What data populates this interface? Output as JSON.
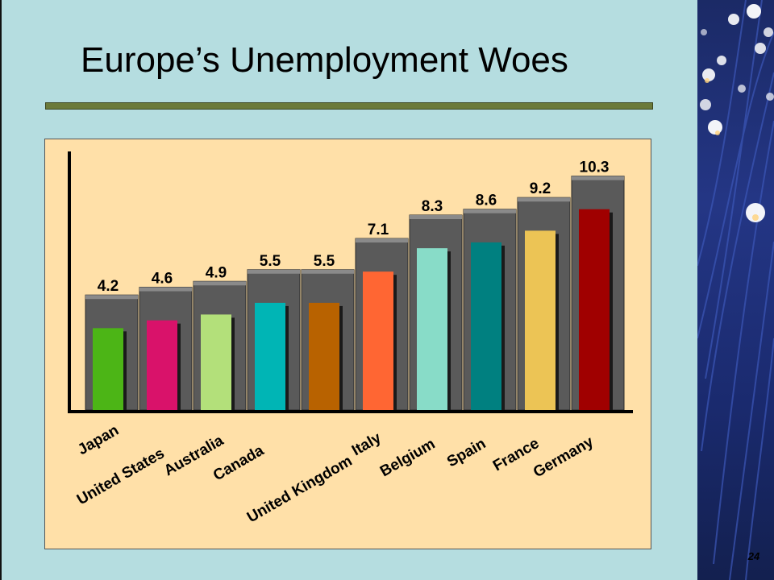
{
  "slide": {
    "title": "Europe’s Unemployment Woes",
    "page_number": "24"
  },
  "colors": {
    "background": "#b5dde0",
    "chart_panel": "#ffe0a8",
    "title_rule": "#6b7a3a",
    "bar_frame": "#5a5a5a"
  },
  "chart_data": {
    "type": "bar",
    "title": "",
    "xlabel": "",
    "ylabel": "",
    "categories": [
      "Japan",
      "United States",
      "Australia",
      "Canada",
      "United Kingdom",
      "Italy",
      "Belgium",
      "Spain",
      "France",
      "Germany"
    ],
    "values": [
      4.2,
      4.6,
      4.9,
      5.5,
      5.5,
      7.1,
      8.3,
      8.6,
      9.2,
      10.3
    ],
    "value_labels": [
      "4.2",
      "4.6",
      "4.9",
      "5.5",
      "5.5",
      "7.1",
      "8.3",
      "8.6",
      "9.2",
      "10.3"
    ],
    "bar_colors": [
      "#4cb516",
      "#d9126a",
      "#b3e07a",
      "#00b5b5",
      "#b86200",
      "#ff6633",
      "#88dcc8",
      "#008080",
      "#ecc455",
      "#a00000"
    ],
    "ylim": [
      0,
      11
    ],
    "grid": false,
    "legend": "none"
  }
}
